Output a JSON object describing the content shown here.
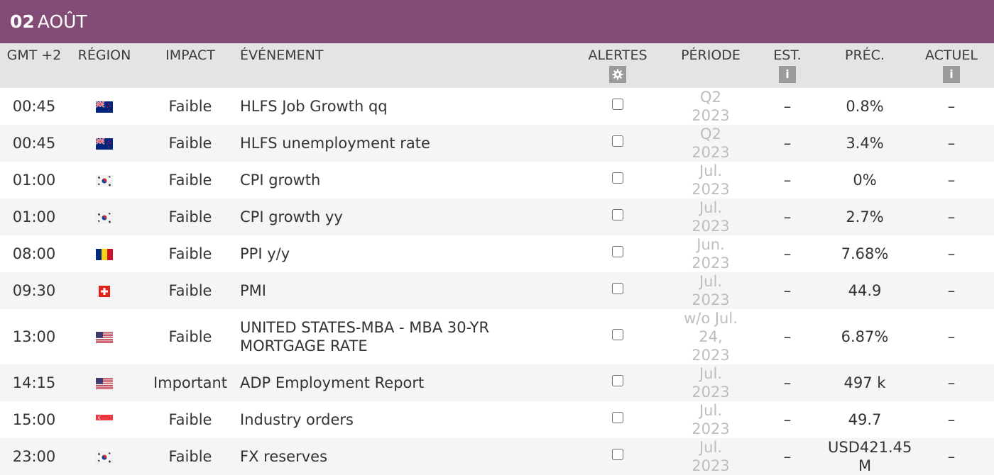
{
  "header": {
    "day": "02",
    "month": "AOÛT"
  },
  "columns": {
    "time": "GMT +2",
    "region": "RÉGION",
    "impact": "IMPACT",
    "event": "ÉVÉNEMENT",
    "alerts": "ALERTES",
    "period": "PÉRIODE",
    "est": "EST.",
    "prev": "PRÉC.",
    "actual": "ACTUEL"
  },
  "header_icons": {
    "alerts": "gear-icon",
    "est": "info-icon",
    "actual": "info-icon"
  },
  "rows": [
    {
      "time": "00:45",
      "flag": "new-zealand",
      "impact": "Faible",
      "event": "HLFS Job Growth qq",
      "period": "Q2 2023",
      "est": "–",
      "prev": "0.8%",
      "actual": "–"
    },
    {
      "time": "00:45",
      "flag": "new-zealand",
      "impact": "Faible",
      "event": "HLFS unemployment rate",
      "period": "Q2 2023",
      "est": "–",
      "prev": "3.4%",
      "actual": "–"
    },
    {
      "time": "01:00",
      "flag": "south-korea",
      "impact": "Faible",
      "event": "CPI growth",
      "period": "Jul. 2023",
      "est": "–",
      "prev": "0%",
      "actual": "–"
    },
    {
      "time": "01:00",
      "flag": "south-korea",
      "impact": "Faible",
      "event": "CPI growth yy",
      "period": "Jul. 2023",
      "est": "–",
      "prev": "2.7%",
      "actual": "–"
    },
    {
      "time": "08:00",
      "flag": "romania",
      "impact": "Faible",
      "event": "PPI y/y",
      "period": "Jun. 2023",
      "est": "–",
      "prev": "7.68%",
      "actual": "–"
    },
    {
      "time": "09:30",
      "flag": "switzerland",
      "impact": "Faible",
      "event": "PMI",
      "period": "Jul. 2023",
      "est": "–",
      "prev": "44.9",
      "actual": "–"
    },
    {
      "time": "13:00",
      "flag": "united-states",
      "impact": "Faible",
      "event": "UNITED STATES-MBA - MBA 30-YR MORTGAGE RATE",
      "period": "w/o Jul. 24, 2023",
      "est": "–",
      "prev": "6.87%",
      "actual": "–"
    },
    {
      "time": "14:15",
      "flag": "united-states",
      "impact": "Important",
      "event": "ADP Employment Report",
      "period": "Jul. 2023",
      "est": "–",
      "prev": "497 k",
      "actual": "–"
    },
    {
      "time": "15:00",
      "flag": "singapore",
      "impact": "Faible",
      "event": "Industry orders",
      "period": "Jul. 2023",
      "est": "–",
      "prev": "49.7",
      "actual": "–"
    },
    {
      "time": "23:00",
      "flag": "south-korea",
      "impact": "Faible",
      "event": "FX reserves",
      "period": "Jul. 2023",
      "est": "–",
      "prev": "USD421.45 M",
      "actual": "–"
    }
  ]
}
